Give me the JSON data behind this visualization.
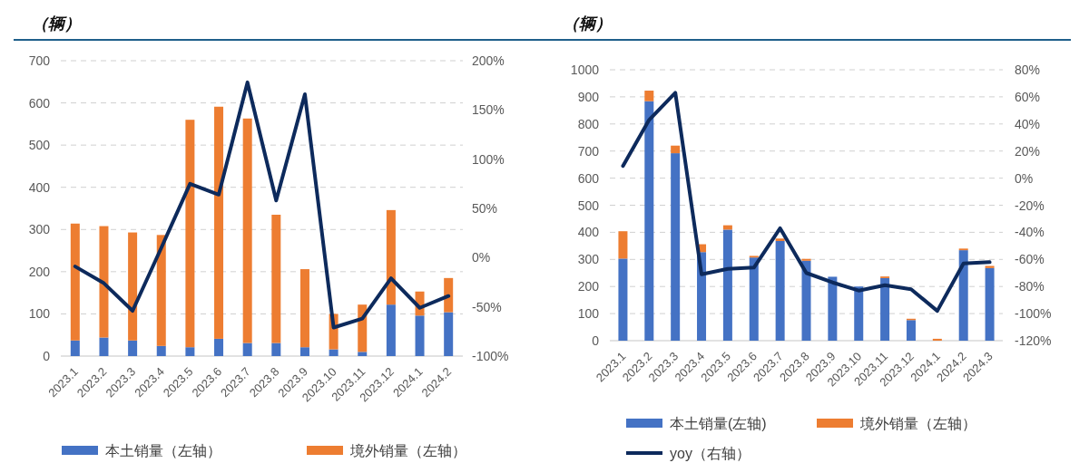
{
  "chart_data": [
    {
      "type": "bar",
      "subtitle": "（辆）",
      "stacked": true,
      "grid": "y",
      "legend": "bottom",
      "categories": [
        "2023.1",
        "2023.2",
        "2023.3",
        "2023.4",
        "2023.5",
        "2023.6",
        "2023.7",
        "2023.8",
        "2023.9",
        "2023.10",
        "2023.11",
        "2023.12",
        "2024.1",
        "2024.2"
      ],
      "ylim": [
        0,
        700
      ],
      "yticks": [
        0,
        100,
        200,
        300,
        400,
        500,
        600,
        700
      ],
      "y2lim": [
        -100,
        200
      ],
      "y2ticks": [
        {
          "value": -100,
          "label": "-100%"
        },
        {
          "value": -50,
          "label": "-50%"
        },
        {
          "value": 0,
          "label": "0%"
        },
        {
          "value": 50,
          "label": "50%"
        },
        {
          "value": 100,
          "label": "100%"
        },
        {
          "value": 150,
          "label": "150%"
        },
        {
          "value": 200,
          "label": "200%"
        }
      ],
      "series": [
        {
          "name": "本土销量（左轴）",
          "color": "#4472c4",
          "values": [
            37,
            44,
            37,
            24,
            21,
            41,
            31,
            31,
            21,
            16,
            10,
            122,
            96,
            104
          ]
        },
        {
          "name": "境外销量（左轴）",
          "color": "#ed7d31",
          "values": [
            277,
            264,
            256,
            263,
            539,
            550,
            532,
            304,
            185,
            84,
            112,
            224,
            57,
            81
          ]
        },
        {
          "type": "line",
          "axis": "y2",
          "color": "#0d2a5c",
          "values": [
            -9,
            -26,
            -54,
            10,
            75,
            64,
            178,
            58,
            166,
            -71,
            -62,
            -21,
            -51,
            -39
          ]
        }
      ]
    },
    {
      "type": "bar",
      "subtitle": "（辆）",
      "stacked": true,
      "grid": "y",
      "legend": "bottom",
      "categories": [
        "2023.1",
        "2023.2",
        "2023.3",
        "2023.4",
        "2023.5",
        "2023.6",
        "2023.7",
        "2023.8",
        "2023.9",
        "2023.10",
        "2023.11",
        "2023.12",
        "2024.1",
        "2024.2",
        "2024.3"
      ],
      "ylim": [
        0,
        1000
      ],
      "yticks": [
        0,
        100,
        200,
        300,
        400,
        500,
        600,
        700,
        800,
        900,
        1000
      ],
      "y2lim": [
        -120,
        80
      ],
      "y2ticks": [
        {
          "value": -120,
          "label": "-120%"
        },
        {
          "value": -100,
          "label": "-100%"
        },
        {
          "value": -80,
          "label": "-80%"
        },
        {
          "value": -60,
          "label": "-60%"
        },
        {
          "value": -40,
          "label": "-40%"
        },
        {
          "value": -20,
          "label": "-20%"
        },
        {
          "value": 0,
          "label": "0%"
        },
        {
          "value": 20,
          "label": "20%"
        },
        {
          "value": 40,
          "label": "40%"
        },
        {
          "value": 60,
          "label": "60%"
        },
        {
          "value": 80,
          "label": "80%"
        }
      ],
      "series": [
        {
          "name": "本土销量(左轴)",
          "color": "#4472c4",
          "values": [
            303,
            884,
            692,
            327,
            410,
            307,
            368,
            295,
            236,
            200,
            231,
            76,
            0,
            334,
            268
          ]
        },
        {
          "name": "境外销量（左轴）",
          "color": "#ed7d31",
          "values": [
            101,
            39,
            28,
            29,
            16,
            6,
            9,
            7,
            0,
            0,
            6,
            5,
            7,
            6,
            8
          ]
        },
        {
          "name": "yoy（右轴）",
          "type": "line",
          "axis": "y2",
          "color": "#0d2a5c",
          "values": [
            9,
            43,
            63,
            -71,
            -67,
            -66,
            -37,
            -70,
            -77,
            -83,
            -79,
            -82,
            -98,
            -63,
            -62
          ]
        }
      ]
    }
  ]
}
